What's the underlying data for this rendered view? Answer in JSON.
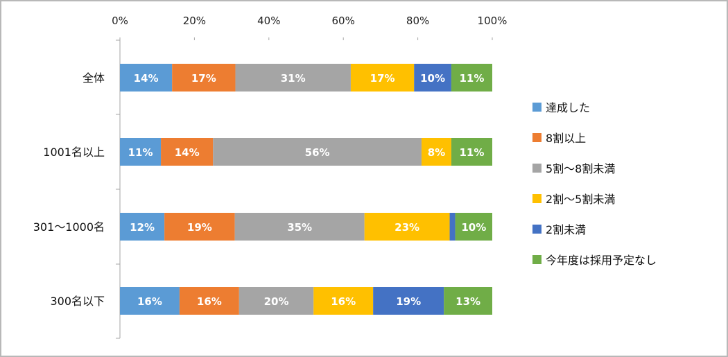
{
  "chart_data": {
    "type": "bar",
    "orientation": "horizontal",
    "stacked": "percent",
    "categories": [
      "全体",
      "1001名以上",
      "301～1000名",
      "300名以下"
    ],
    "x_ticks": [
      "0%",
      "20%",
      "40%",
      "60%",
      "80%",
      "100%"
    ],
    "xlim": [
      0,
      100
    ],
    "grid": false,
    "legend_position": "right",
    "series": [
      {
        "name": "達成した",
        "color": "#5b9bd5",
        "values": [
          14,
          11,
          12,
          16
        ],
        "labels": [
          "14%",
          "11%",
          "12%",
          "16%"
        ]
      },
      {
        "name": "8割以上",
        "color": "#ed7d31",
        "values": [
          17,
          14,
          19,
          16
        ],
        "labels": [
          "17%",
          "14%",
          "19%",
          "16%"
        ]
      },
      {
        "name": "5割～8割未満",
        "color": "#a5a5a5",
        "values": [
          31,
          56,
          35,
          20
        ],
        "labels": [
          "31%",
          "56%",
          "35%",
          "20%"
        ]
      },
      {
        "name": "2割～5割未満",
        "color": "#ffc000",
        "values": [
          17,
          8,
          23,
          16
        ],
        "labels": [
          "17%",
          "8%",
          "23%",
          "16%"
        ]
      },
      {
        "name": "2割未満",
        "color": "#4472c4",
        "values": [
          10,
          0,
          1.5,
          19
        ],
        "labels": [
          "10%",
          "",
          "",
          "19%"
        ]
      },
      {
        "name": "今年度は採用予定なし",
        "color": "#70ad47",
        "values": [
          11,
          11,
          10,
          13
        ],
        "labels": [
          "11%",
          "11%",
          "10%",
          "13%"
        ]
      }
    ]
  }
}
